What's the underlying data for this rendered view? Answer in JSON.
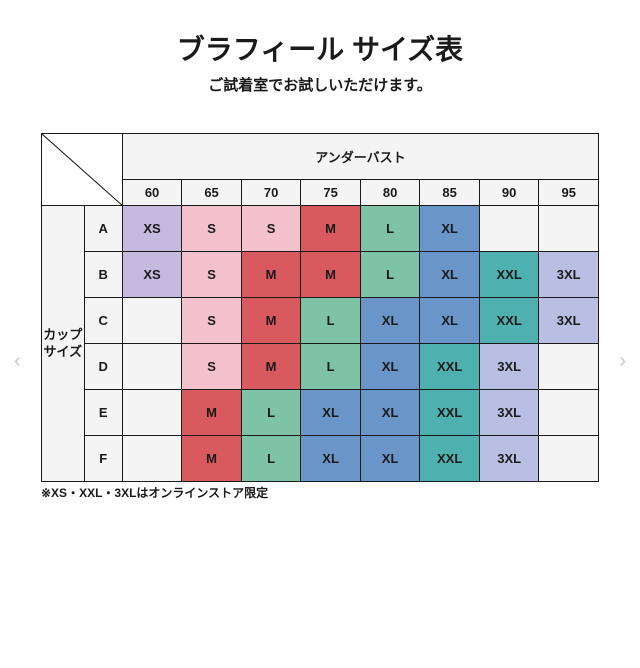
{
  "title": "ブラフィール サイズ表",
  "subtitle": "ご試着室でお試しいただけます。",
  "col_header": "アンダーバスト",
  "row_header": "カップ\nサイズ",
  "cols": [
    "60",
    "65",
    "70",
    "75",
    "80",
    "85",
    "90",
    "95"
  ],
  "rows": [
    "A",
    "B",
    "C",
    "D",
    "E",
    "F"
  ],
  "footnote": "※XS・XXL・3XLはオンラインストア限定",
  "colors": {
    "header_bg": "#f4f4f4",
    "purple": "#c5b9e0",
    "pink": "#f3c2cc",
    "red": "#d85a5f",
    "green": "#7fc3a6",
    "blue": "#6a95c9",
    "teal": "#4fb0b0",
    "lav": "#b9bfe3",
    "empty": "#f4f4f4",
    "border": "#1a1a1a",
    "text": "#1a1a1a"
  },
  "grid": [
    [
      {
        "v": "XS",
        "c": "purple"
      },
      {
        "v": "S",
        "c": "pink"
      },
      {
        "v": "S",
        "c": "pink"
      },
      {
        "v": "M",
        "c": "red"
      },
      {
        "v": "L",
        "c": "green"
      },
      {
        "v": "XL",
        "c": "blue"
      },
      {
        "v": "",
        "c": "empty"
      },
      {
        "v": "",
        "c": "empty"
      }
    ],
    [
      {
        "v": "XS",
        "c": "purple"
      },
      {
        "v": "S",
        "c": "pink"
      },
      {
        "v": "M",
        "c": "red"
      },
      {
        "v": "M",
        "c": "red"
      },
      {
        "v": "L",
        "c": "green"
      },
      {
        "v": "XL",
        "c": "blue"
      },
      {
        "v": "XXL",
        "c": "teal"
      },
      {
        "v": "3XL",
        "c": "lav"
      }
    ],
    [
      {
        "v": "",
        "c": "empty"
      },
      {
        "v": "S",
        "c": "pink"
      },
      {
        "v": "M",
        "c": "red"
      },
      {
        "v": "L",
        "c": "green"
      },
      {
        "v": "XL",
        "c": "blue"
      },
      {
        "v": "XL",
        "c": "blue"
      },
      {
        "v": "XXL",
        "c": "teal"
      },
      {
        "v": "3XL",
        "c": "lav"
      }
    ],
    [
      {
        "v": "",
        "c": "empty"
      },
      {
        "v": "S",
        "c": "pink"
      },
      {
        "v": "M",
        "c": "red"
      },
      {
        "v": "L",
        "c": "green"
      },
      {
        "v": "XL",
        "c": "blue"
      },
      {
        "v": "XXL",
        "c": "teal"
      },
      {
        "v": "3XL",
        "c": "lav"
      },
      {
        "v": "",
        "c": "empty"
      }
    ],
    [
      {
        "v": "",
        "c": "empty"
      },
      {
        "v": "M",
        "c": "red"
      },
      {
        "v": "L",
        "c": "green"
      },
      {
        "v": "XL",
        "c": "blue"
      },
      {
        "v": "XL",
        "c": "blue"
      },
      {
        "v": "XXL",
        "c": "teal"
      },
      {
        "v": "3XL",
        "c": "lav"
      },
      {
        "v": "",
        "c": "empty"
      }
    ],
    [
      {
        "v": "",
        "c": "empty"
      },
      {
        "v": "M",
        "c": "red"
      },
      {
        "v": "L",
        "c": "green"
      },
      {
        "v": "XL",
        "c": "blue"
      },
      {
        "v": "XL",
        "c": "blue"
      },
      {
        "v": "XXL",
        "c": "teal"
      },
      {
        "v": "3XL",
        "c": "lav"
      },
      {
        "v": "",
        "c": "empty"
      }
    ]
  ],
  "nav": {
    "left": "‹",
    "right": "›"
  }
}
